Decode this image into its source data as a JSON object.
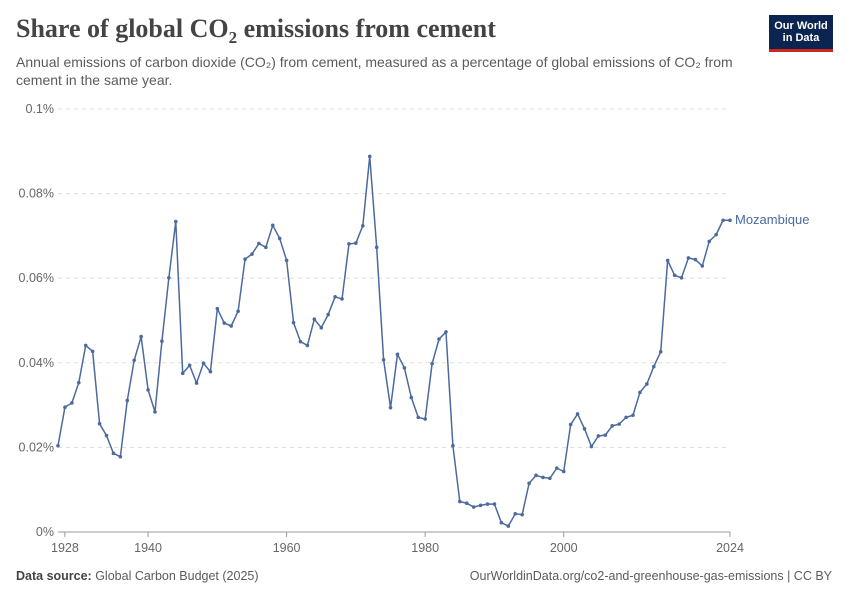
{
  "header": {
    "title_main": "Share of global CO",
    "title_sub": "2",
    "title_rest": " emissions from cement",
    "subtitle": "Annual emissions of carbon dioxide (CO₂) from cement, measured as a percentage of global emissions of CO₂ from cement in the same year."
  },
  "logo": {
    "line1": "Our World",
    "line2": "in Data"
  },
  "footer": {
    "source_label": "Data source:",
    "source_text": " Global Carbon Budget (2025)",
    "url_text": "OurWorldinData.org/co2-and-greenhouse-gas-emissions | CC BY"
  },
  "colors": {
    "line": "#4c6a9c",
    "grid": "#dddddd",
    "axis": "#666666"
  },
  "chart_data": {
    "type": "line",
    "title": "Share of global CO₂ emissions from cement",
    "xlabel": "",
    "ylabel": "",
    "xlim": [
      1927,
      2024
    ],
    "ylim": [
      0,
      0.1
    ],
    "y_ticks": [
      0,
      0.02,
      0.04,
      0.06,
      0.08,
      0.1
    ],
    "y_tick_labels": [
      "0%",
      "0.02%",
      "0.04%",
      "0.06%",
      "0.08%",
      "0.1%"
    ],
    "x_ticks": [
      1928,
      1940,
      1960,
      1980,
      2000,
      2024
    ],
    "x_tick_labels": [
      "1928",
      "1940",
      "1960",
      "1980",
      "2000",
      "2024"
    ],
    "grid": true,
    "series": [
      {
        "name": "Mozambique",
        "x": [
          1927,
          1928,
          1929,
          1930,
          1931,
          1932,
          1933,
          1934,
          1935,
          1936,
          1937,
          1938,
          1939,
          1940,
          1941,
          1942,
          1943,
          1944,
          1945,
          1946,
          1947,
          1948,
          1949,
          1950,
          1951,
          1952,
          1953,
          1954,
          1955,
          1956,
          1957,
          1958,
          1959,
          1960,
          1961,
          1962,
          1963,
          1964,
          1965,
          1966,
          1967,
          1968,
          1969,
          1970,
          1971,
          1972,
          1973,
          1974,
          1975,
          1976,
          1977,
          1978,
          1979,
          1980,
          1981,
          1982,
          1983,
          1984,
          1985,
          1986,
          1987,
          1988,
          1989,
          1990,
          1991,
          1992,
          1993,
          1994,
          1995,
          1996,
          1997,
          1998,
          1999,
          2000,
          2001,
          2002,
          2003,
          2004,
          2005,
          2006,
          2007,
          2008,
          2009,
          2010,
          2011,
          2012,
          2013,
          2014,
          2015,
          2016,
          2017,
          2018,
          2019,
          2020,
          2021,
          2022,
          2023,
          2024
        ],
        "values": [
          0.0204,
          0.0295,
          0.0305,
          0.0353,
          0.0441,
          0.0427,
          0.0256,
          0.0228,
          0.0186,
          0.0178,
          0.0311,
          0.0406,
          0.0462,
          0.0336,
          0.0284,
          0.0451,
          0.0601,
          0.0734,
          0.0375,
          0.0394,
          0.0352,
          0.0399,
          0.0379,
          0.0528,
          0.0494,
          0.0487,
          0.0522,
          0.0645,
          0.0657,
          0.0682,
          0.0673,
          0.0725,
          0.0694,
          0.0642,
          0.0495,
          0.045,
          0.0441,
          0.0503,
          0.0483,
          0.0514,
          0.0556,
          0.0551,
          0.0681,
          0.0683,
          0.0724,
          0.0888,
          0.0673,
          0.0407,
          0.0294,
          0.042,
          0.0388,
          0.0318,
          0.0271,
          0.0267,
          0.0398,
          0.0456,
          0.0473,
          0.0204,
          0.0072,
          0.0068,
          0.0059,
          0.0063,
          0.0066,
          0.0066,
          0.0022,
          0.0014,
          0.0043,
          0.0041,
          0.0115,
          0.0134,
          0.0129,
          0.0127,
          0.0151,
          0.0143,
          0.0254,
          0.0279,
          0.0244,
          0.0202,
          0.0227,
          0.0229,
          0.0251,
          0.0255,
          0.0271,
          0.0276,
          0.033,
          0.035,
          0.0391,
          0.0426,
          0.0642,
          0.0607,
          0.0601,
          0.0648,
          0.0644,
          0.0629,
          0.0687,
          0.0703,
          0.0737,
          0.0737
        ]
      }
    ]
  }
}
